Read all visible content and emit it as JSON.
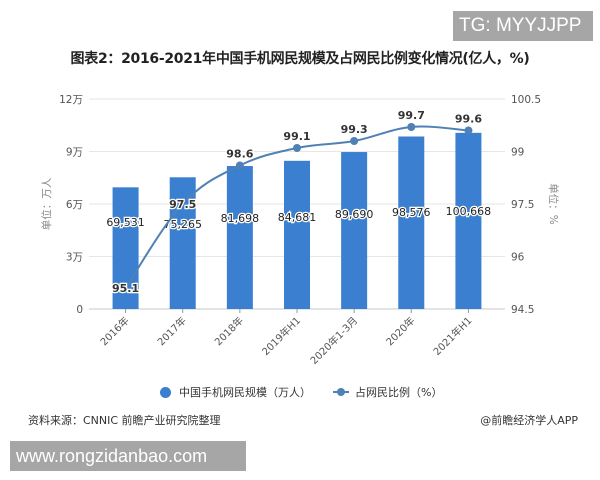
{
  "watermark_top": "TG: MYYJJPP",
  "watermark_bottom": "www.rongzidanbao.com",
  "title": "图表2：2016-2021年中国手机网民规模及占网民比例变化情况(亿人，%)",
  "source": "资料来源：CNNIC 前瞻产业研究院整理",
  "credit": "@前瞻经济学人APP",
  "legend": {
    "bar": "中国手机网民规模（万人）",
    "line": "占网民比例（%）"
  },
  "colors": {
    "bar": "#3a7fd0",
    "line": "#4f81b5",
    "grid": "#e6e6e6"
  },
  "chart_data": {
    "type": "bar+line",
    "title": "图表2：2016-2021年中国手机网民规模及占网民比例变化情况(亿人，%)",
    "categories": [
      "2016年",
      "2017年",
      "2018年",
      "2019年H1",
      "2020年1-3月",
      "2020年",
      "2021年H1"
    ],
    "series": [
      {
        "name": "中国手机网民规模（万人）",
        "type": "bar",
        "axis": "left",
        "values": [
          69531,
          75265,
          81698,
          84681,
          89690,
          98576,
          100668
        ],
        "labels": [
          "69,531",
          "75,265",
          "81,698",
          "84,681",
          "89,690",
          "98,576",
          "100,668"
        ]
      },
      {
        "name": "占网民比例（%）",
        "type": "line",
        "axis": "right",
        "values": [
          95.1,
          97.5,
          98.6,
          99.1,
          99.3,
          99.7,
          99.6
        ],
        "labels": [
          "95.1",
          "97.5",
          "98.6",
          "99.1",
          "99.3",
          "99.7",
          "99.6"
        ]
      }
    ],
    "left_axis": {
      "label": "单位：万人",
      "ticks": [
        "0",
        "3万",
        "6万",
        "9万",
        "12万"
      ],
      "range": [
        0,
        120000
      ]
    },
    "right_axis": {
      "label": "单位：%",
      "ticks": [
        "94.5",
        "96",
        "97.5",
        "99",
        "100.5"
      ],
      "range": [
        94.5,
        100.5
      ]
    },
    "grid": true,
    "legend_position": "bottom"
  }
}
